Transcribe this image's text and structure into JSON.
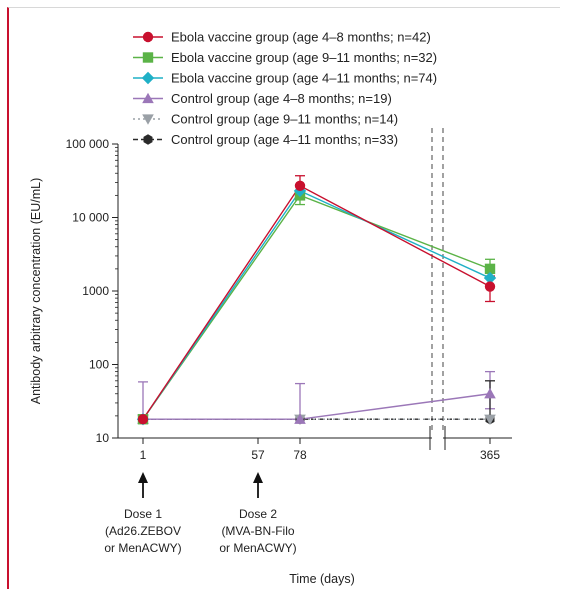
{
  "chart_data": {
    "type": "line",
    "xlabel": "Time (days)",
    "ylabel": "Antibody arbitrary concentration (EU/mL)",
    "y_scale": "log",
    "ylim": [
      10,
      100000
    ],
    "x_ticks": [
      "1",
      "57",
      "78",
      "365"
    ],
    "y_ticks": [
      {
        "value": 10,
        "label": "10"
      },
      {
        "value": 100,
        "label": "100"
      },
      {
        "value": 1000,
        "label": "1000"
      },
      {
        "value": 10000,
        "label": "10 000"
      },
      {
        "value": 100000,
        "label": "100 000"
      }
    ],
    "axis_break": "between day 78 and day 365",
    "grid": false,
    "legend_position": "top",
    "series": [
      {
        "name": "Ebola vaccine group (age 4–8 months; n=42)",
        "color": "#c8102e",
        "marker": "circle",
        "line": "solid",
        "points": [
          {
            "day": 1,
            "value": 18
          },
          {
            "day": 78,
            "value": 27000,
            "err_low": 19000,
            "err_high": 37000
          },
          {
            "day": 365,
            "value": 1150,
            "err_low": 720,
            "err_high": 1600
          }
        ]
      },
      {
        "name": "Ebola vaccine group (age 9–11 months; n=32)",
        "color": "#5bb347",
        "marker": "square",
        "line": "solid",
        "points": [
          {
            "day": 1,
            "value": 18
          },
          {
            "day": 78,
            "value": 20000,
            "err_low": 15000,
            "err_high": 27000
          },
          {
            "day": 365,
            "value": 2000,
            "err_low": 1500,
            "err_high": 2700
          }
        ]
      },
      {
        "name": "Ebola vaccine group (age 4–11 months; n=74)",
        "color": "#1fb0c6",
        "marker": "diamond",
        "line": "solid",
        "points": [
          {
            "day": 1,
            "value": 18
          },
          {
            "day": 78,
            "value": 23000
          },
          {
            "day": 365,
            "value": 1500
          }
        ]
      },
      {
        "name": "Control group (age 4–8 months; n=19)",
        "color": "#9b77b8",
        "marker": "triangle-up",
        "line": "solid",
        "points": [
          {
            "day": 1,
            "value": 18,
            "err_high": 58
          },
          {
            "day": 78,
            "value": 18,
            "err_high": 55
          },
          {
            "day": 365,
            "value": 40,
            "err_low": 25,
            "err_high": 80
          }
        ]
      },
      {
        "name": "Control group (age 9–11 months; n=14)",
        "color": "#9aa0a6",
        "marker": "triangle-down",
        "line": "dotted",
        "points": [
          {
            "day": 1,
            "value": 18
          },
          {
            "day": 78,
            "value": 18
          },
          {
            "day": 365,
            "value": 18
          }
        ]
      },
      {
        "name": "Control group (age 4–11 months; n=33)",
        "color": "#2a2a2a",
        "marker": "hexagon",
        "line": "dashed",
        "points": [
          {
            "day": 1,
            "value": 18
          },
          {
            "day": 78,
            "value": 18
          },
          {
            "day": 365,
            "value": 18,
            "err_high": 60
          }
        ]
      }
    ],
    "annotations": [
      {
        "day": 1,
        "label_lines": [
          "Dose 1",
          "(Ad26.ZEBOV",
          "or MenACWY)"
        ]
      },
      {
        "day": 57,
        "label_lines": [
          "Dose 2",
          "(MVA-BN-Filo",
          "or MenACWY)"
        ]
      }
    ]
  }
}
